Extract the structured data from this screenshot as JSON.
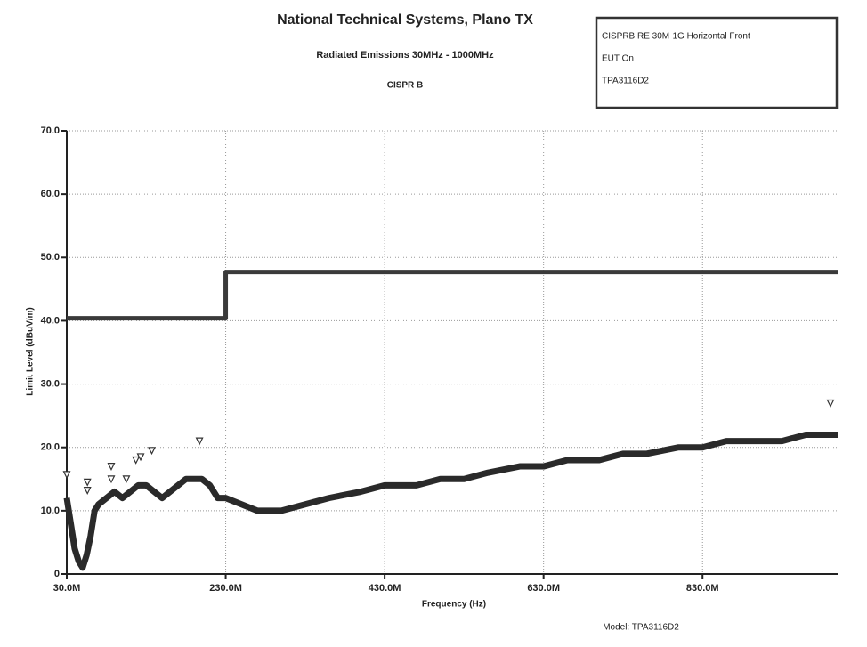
{
  "chart_data": {
    "type": "line",
    "title": "National Technical Systems, Plano TX",
    "subtitle": "Radiated Emissions 30MHz - 1000MHz",
    "limit_name": "CISPR B",
    "info_box": [
      "CISPRB RE 30M-1G Horizontal Front",
      "EUT On",
      "TPA3116D2"
    ],
    "y_label": "Limit Level (dBuV/m)",
    "x_label": "Frequency (Hz)",
    "footer": "Model: TPA3116D2",
    "xlim": [
      30,
      1000
    ],
    "xticks": [
      {
        "value": 30,
        "label": "30.0M"
      },
      {
        "value": 230,
        "label": "230.0M"
      },
      {
        "value": 430,
        "label": "430.0M"
      },
      {
        "value": 630,
        "label": "630.0M"
      },
      {
        "value": 830,
        "label": "830.0M"
      }
    ],
    "ylim": [
      0,
      70
    ],
    "yticks": [
      0,
      {
        "value": 10,
        "label": "10.0"
      },
      {
        "value": 20,
        "label": "20.0"
      },
      {
        "value": 30,
        "label": "30.0"
      },
      {
        "value": 40,
        "label": "40.0"
      },
      {
        "value": 50,
        "label": "50.0"
      },
      {
        "value": 60,
        "label": "60.0"
      },
      {
        "value": 70,
        "label": "70.0"
      }
    ],
    "grid": true,
    "limit": {
      "color": "#3a3a3a",
      "x": [
        30,
        230,
        230,
        1000
      ],
      "values": [
        40.4,
        40.4,
        47.7,
        47.7
      ]
    },
    "trace": {
      "color": "#2a2a2a",
      "x": [
        30,
        35,
        40,
        45,
        50,
        55,
        60,
        65,
        70,
        80,
        90,
        100,
        110,
        120,
        130,
        140,
        150,
        160,
        170,
        180,
        190,
        200,
        210,
        220,
        230,
        250,
        270,
        290,
        300,
        330,
        360,
        400,
        430,
        470,
        500,
        530,
        560,
        600,
        630,
        660,
        700,
        730,
        760,
        800,
        830,
        860,
        900,
        930,
        960,
        1000
      ],
      "values": [
        12,
        8,
        4,
        2,
        1,
        3,
        6,
        10,
        11,
        12,
        13,
        12,
        13,
        14,
        14,
        13,
        12,
        13,
        14,
        15,
        15,
        15,
        14,
        12,
        12,
        11,
        10,
        10,
        10,
        11,
        12,
        13,
        14,
        14,
        15,
        15,
        16,
        17,
        17,
        18,
        18,
        19,
        19,
        20,
        20,
        21,
        21,
        21,
        22,
        22
      ]
    },
    "peaks": {
      "color": "#333333",
      "x": [
        30,
        56,
        56,
        86,
        86,
        105,
        117,
        123,
        137,
        197,
        991
      ],
      "values": [
        15.2,
        14.0,
        12.7,
        16.5,
        14.5,
        14.5,
        17.5,
        18.0,
        19.0,
        20.5,
        26.5
      ]
    }
  }
}
